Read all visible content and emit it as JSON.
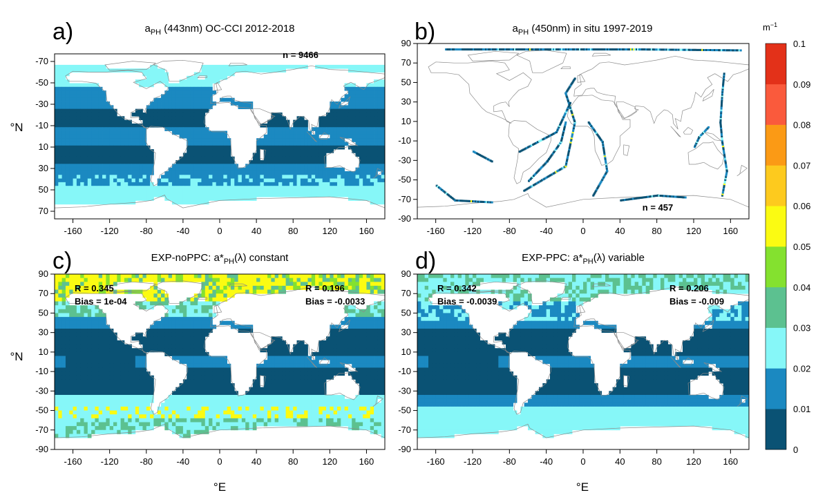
{
  "colors": {
    "scale": [
      "#0a5274",
      "#1b89c1",
      "#86f7f8",
      "#5cc190",
      "#84e12f",
      "#fbfb12",
      "#fdca1e",
      "#fb9a15",
      "#fa5a3c",
      "#e33119"
    ],
    "land": "#ffffff",
    "coast": "#8a8a8a",
    "ocean_noval": "#ffffff"
  },
  "x_axis_label": "°E",
  "y_axis_label": "°N",
  "x_ticks": [
    "-160",
    "-120",
    "-80",
    "-40",
    "0",
    "40",
    "80",
    "120",
    "160"
  ],
  "y_ticks_a": [
    "-70",
    "-50",
    "-30",
    "-10",
    "10",
    "30",
    "50",
    "70"
  ],
  "y_ticks": [
    "90",
    "70",
    "50",
    "30",
    "10",
    "-10",
    "-30",
    "-50",
    "-70",
    "-90"
  ],
  "panels": [
    {
      "label": "a)",
      "title_main": "a",
      "title_sub": "PH",
      "title_rest": " (443nm) OC-CCI 2012-2018",
      "n_text": "n = 9466",
      "type": "satellite"
    },
    {
      "label": "b)",
      "title_main": "a",
      "title_sub": "PH",
      "title_rest": " (450nm) in situ 1997-2019",
      "n_text": "n = 457",
      "type": "insitu"
    },
    {
      "label": "c)",
      "title_pre": "EXP-noPPC: a*",
      "title_sub": "PH",
      "title_rest": "(λ) constant",
      "r_left": "R =  0.345",
      "bias_left": "Bias =  1e-04",
      "r_right": "R =  0.196",
      "bias_right": "Bias =  -0.0033",
      "type": "model_c"
    },
    {
      "label": "d)",
      "title_pre": "EXP-PPC: a*",
      "title_sub": "PH",
      "title_rest": "(λ) variable",
      "r_left": "R =  0.342",
      "bias_left": "Bias =  -0.0039",
      "r_right": "R =  0.206",
      "bias_right": "Bias =  -0.009",
      "type": "model_d"
    }
  ],
  "colorbar": {
    "unit": "m",
    "unit_sup": "−1",
    "labels": [
      "0",
      "0.01",
      "0.02",
      "0.03",
      "0.04",
      "0.05",
      "0.06",
      "0.07",
      "0.08",
      "0.09",
      "0.1"
    ]
  },
  "chart_data": {
    "type": "heatmap",
    "description_fields": "global maps of phytoplankton absorption",
    "xlim": [
      -180,
      180
    ],
    "ylim": [
      -90,
      90
    ],
    "zlim": [
      0,
      0.1
    ],
    "bins": [
      0,
      0.01,
      0.02,
      0.03,
      0.04,
      0.05,
      0.06,
      0.07,
      0.08,
      0.09,
      0.1
    ],
    "stats": {
      "c": {
        "R_left": 0.345,
        "Bias_left": 0.0001,
        "R_right": 0.196,
        "Bias_right": -0.0033
      },
      "d": {
        "R_left": 0.342,
        "Bias_left": -0.0039,
        "R_right": 0.206,
        "Bias_right": -0.009
      }
    },
    "counts": {
      "a": 9466,
      "b": 457
    }
  }
}
